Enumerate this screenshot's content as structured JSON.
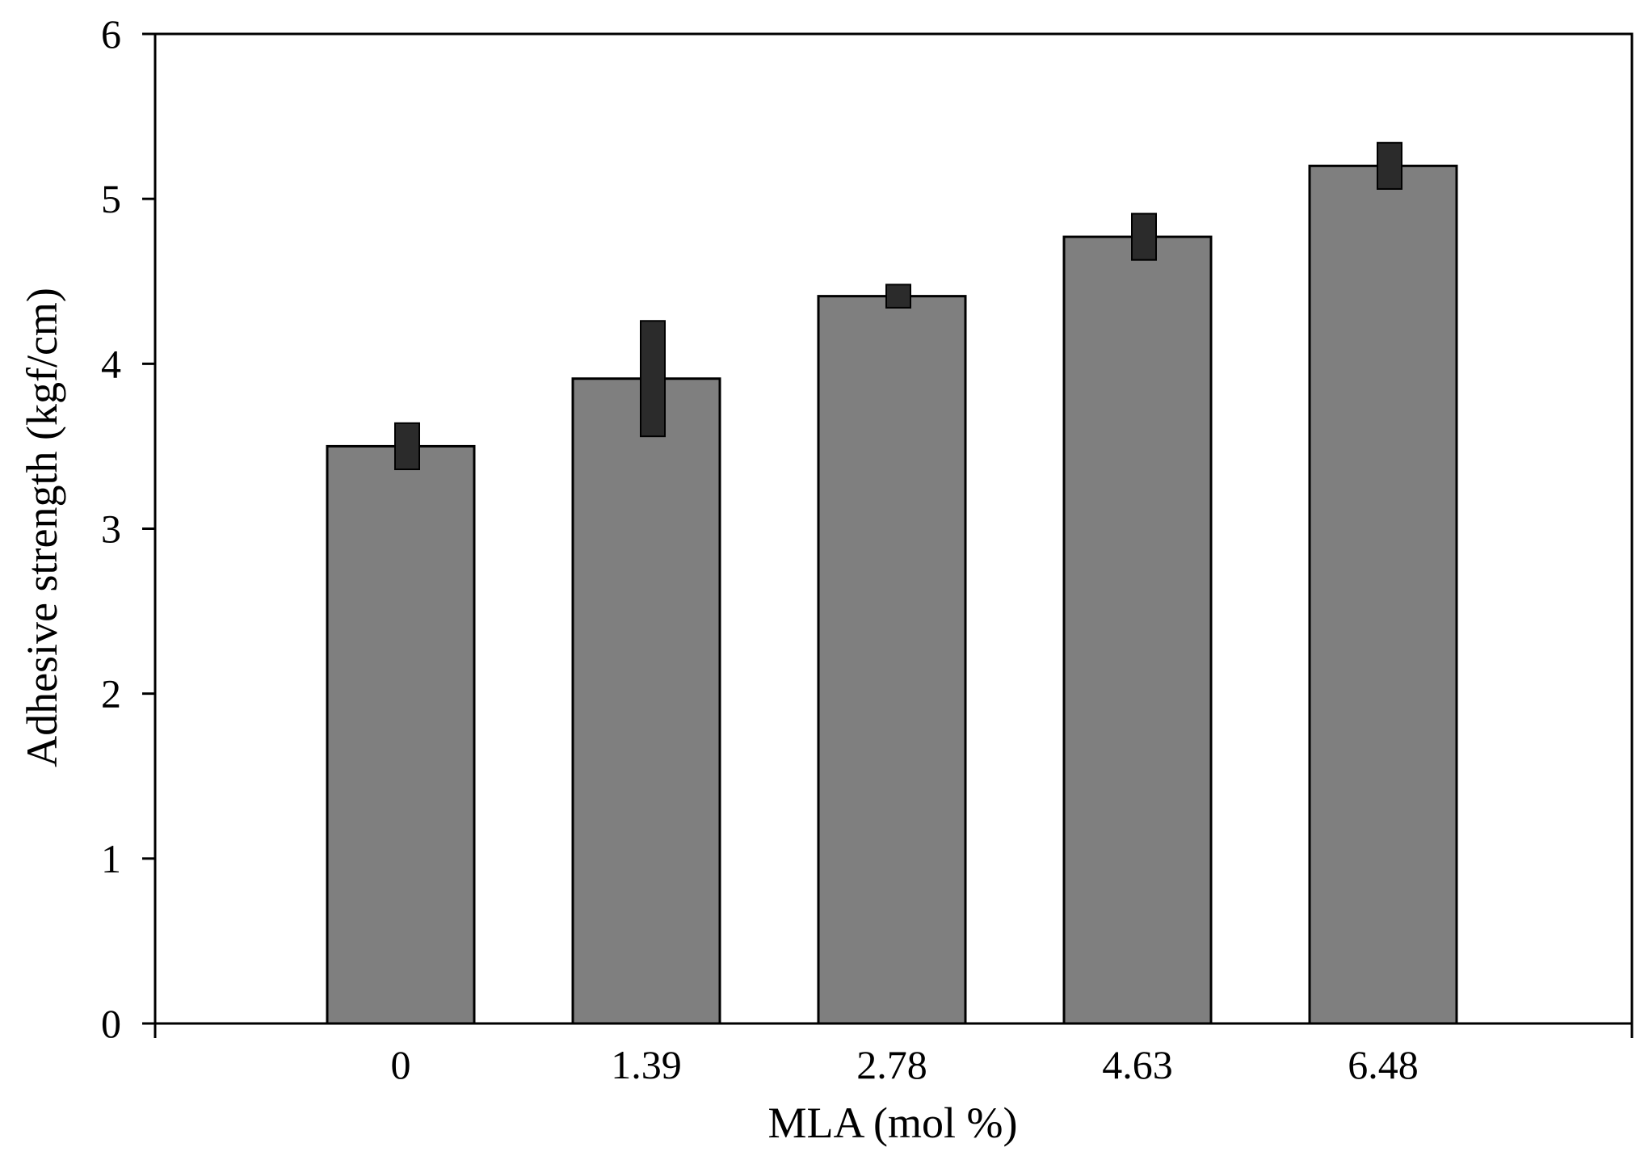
{
  "chart_data": {
    "type": "bar",
    "title": "",
    "xlabel": "MLA (mol  %)",
    "ylabel": "Adhesive strength (kgf/cm)",
    "categories": [
      "0",
      "1.39",
      "2.78",
      "4.63",
      "6.48"
    ],
    "values": [
      3.5,
      3.91,
      4.41,
      4.77,
      5.2
    ],
    "error": [
      0.14,
      0.35,
      0.07,
      0.14,
      0.14
    ],
    "ylim": [
      0,
      6
    ],
    "yticks": [
      0,
      1,
      2,
      3,
      4,
      5,
      6
    ],
    "grid": false,
    "legend": "none",
    "colors": {
      "bar_fill": "#7f7f7f",
      "bar_stroke": "#000000",
      "error_fill": "#2b2b2b",
      "axis": "#000000"
    }
  }
}
